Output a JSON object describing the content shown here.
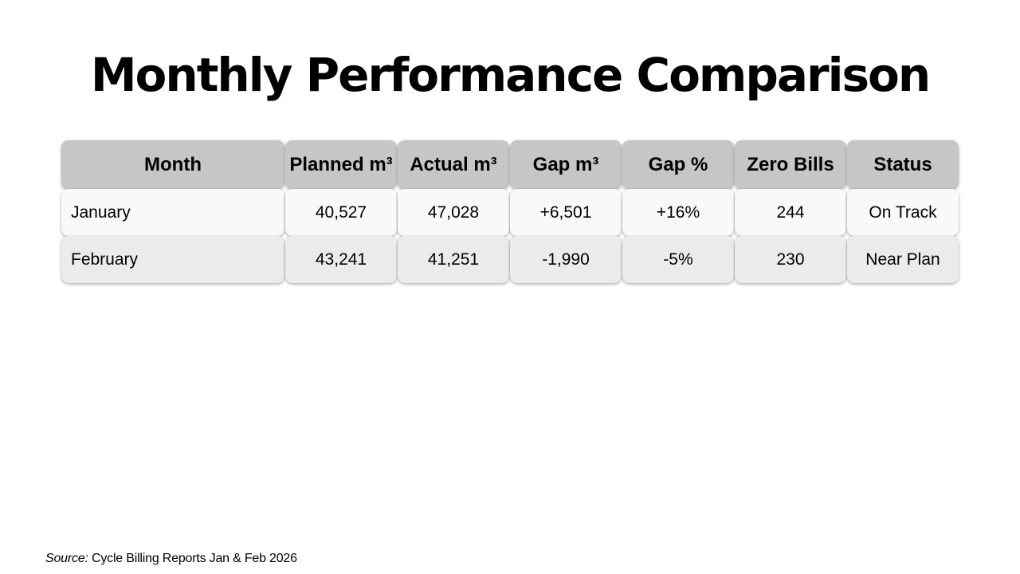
{
  "slide": {
    "title": "Monthly Performance Comparison"
  },
  "table": {
    "headers": [
      "Month",
      "Planned m³",
      "Actual m³",
      "Gap m³",
      "Gap %",
      "Zero Bills",
      "Status"
    ],
    "rows": [
      [
        "January",
        "40,527",
        "47,028",
        "+6,501",
        "+16%",
        "244",
        "On Track"
      ],
      [
        "February",
        "43,241",
        "41,251",
        "-1,990",
        "-5%",
        "230",
        "Near Plan"
      ]
    ]
  },
  "footer": {
    "source_label": "Source:",
    "source_text": "Cycle Billing Reports Jan & Feb 2026"
  }
}
